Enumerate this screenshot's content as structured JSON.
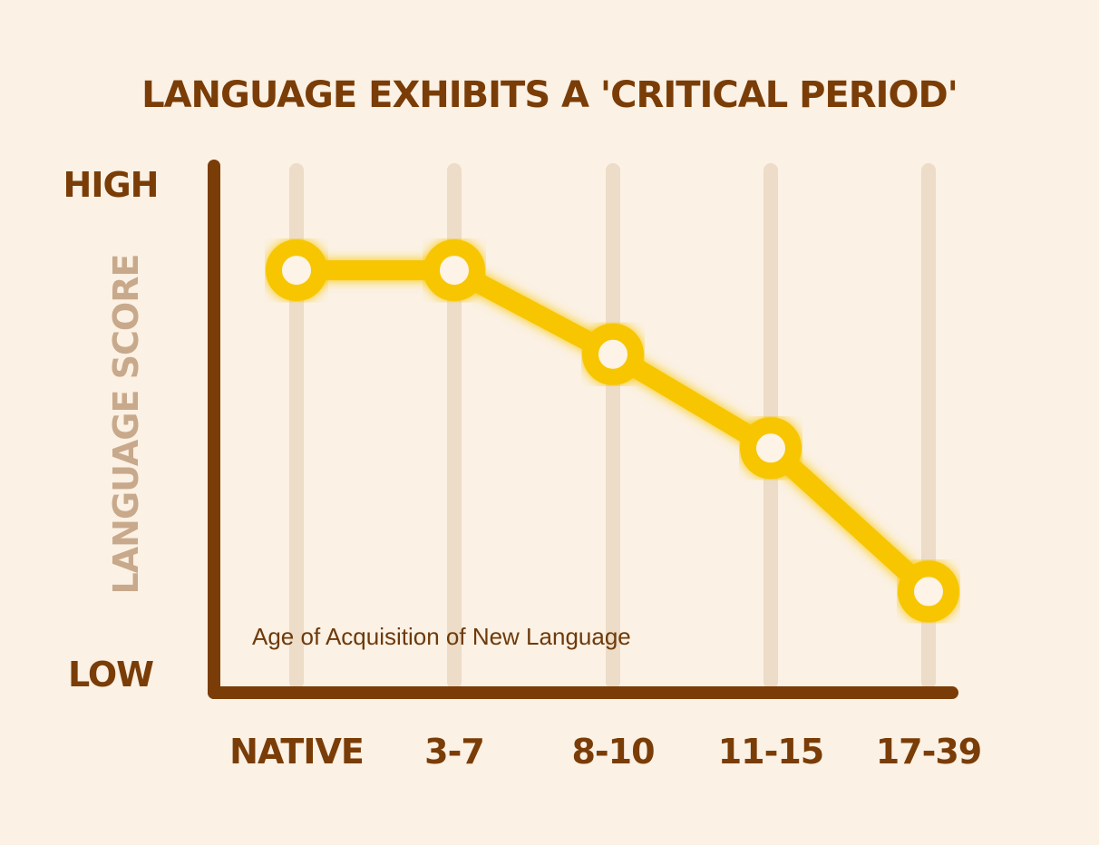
{
  "chart_data": {
    "type": "line",
    "title": "LANGUAGE EXHIBITS A 'CRITICAL PERIOD'",
    "ylabel": "LANGUAGE SCORE",
    "xlabel": "Age of Acquisition of New Language",
    "y_high_label": "HIGH",
    "y_low_label": "LOW",
    "categories": [
      "NATIVE",
      "3-7",
      "8-10",
      "11-15",
      "17-39"
    ],
    "values": [
      0.82,
      0.82,
      0.65,
      0.46,
      0.17
    ],
    "ylim": [
      0,
      1
    ],
    "grid": "vertical",
    "colors": {
      "background": "#fbf1e4",
      "axis": "#7a3d07",
      "line": "#f7c600",
      "marker_fill": "#fdf3e6",
      "gridline": "#ecdcc8",
      "ylabel": "#c8a98b",
      "text": "#7a3d07"
    }
  }
}
